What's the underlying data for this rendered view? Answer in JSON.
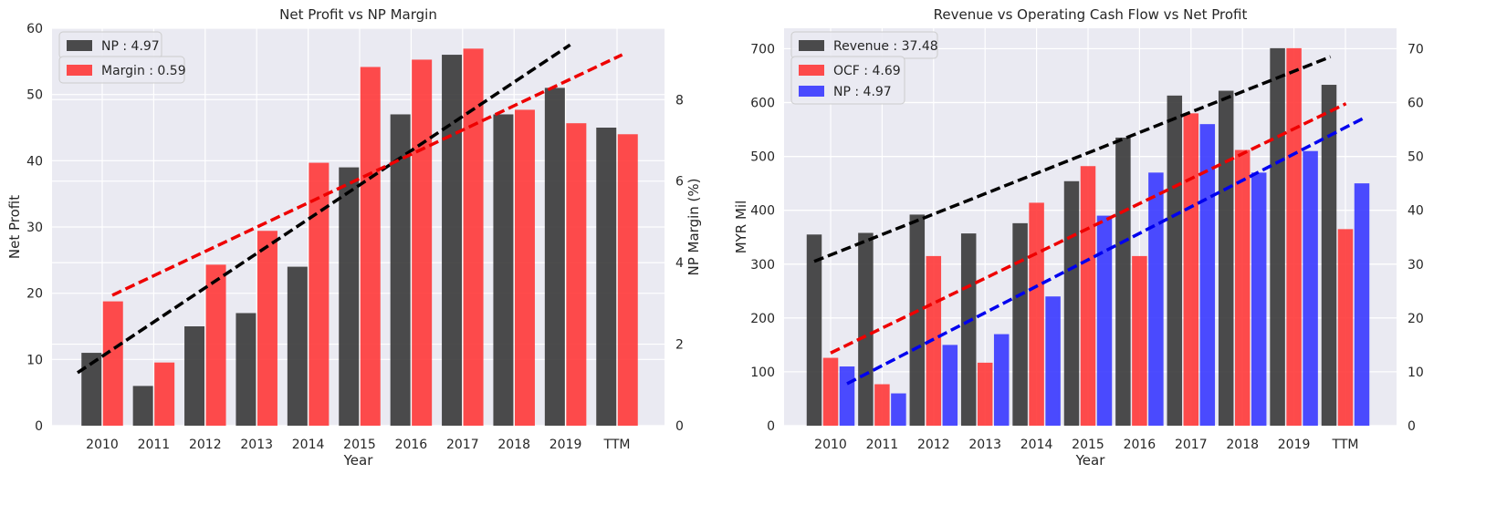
{
  "chart_data": [
    {
      "type": "bar",
      "title": "Net Profit vs NP Margin",
      "xlabel": "Year",
      "ylabel": "Net Profit",
      "y2label": "NP Margin (%)",
      "categories": [
        "2010",
        "2011",
        "2012",
        "2013",
        "2014",
        "2015",
        "2016",
        "2017",
        "2018",
        "2019",
        "TTM"
      ],
      "ylim": [
        0,
        60
      ],
      "yticks": [
        0,
        10,
        20,
        30,
        40,
        50,
        60
      ],
      "y2lim": [
        0,
        9.75
      ],
      "y2ticks": [
        0,
        2,
        4,
        6,
        8
      ],
      "grid": true,
      "legend_position": "top-left",
      "series": [
        {
          "name": "NP : 4.97",
          "axis": "left",
          "color": "#333333",
          "values": [
            11,
            6,
            15,
            17,
            24,
            39,
            47,
            56,
            47,
            51,
            45
          ],
          "trend": [
            8,
            57.5
          ]
        },
        {
          "name": "Margin : 0.59",
          "axis": "right",
          "color": "#ff3333",
          "values": [
            3.05,
            1.55,
            3.95,
            4.78,
            6.45,
            8.8,
            8.98,
            9.25,
            7.75,
            7.42,
            7.15
          ],
          "trend": [
            3.2,
            9.1
          ]
        }
      ]
    },
    {
      "type": "bar",
      "title": "Revenue vs Operating Cash Flow vs Net Profit",
      "xlabel": "Year",
      "ylabel": "MYR Mil",
      "y2label": "",
      "categories": [
        "2010",
        "2011",
        "2012",
        "2013",
        "2014",
        "2015",
        "2016",
        "2017",
        "2018",
        "2019",
        "TTM"
      ],
      "ylim": [
        0,
        738
      ],
      "yticks": [
        0,
        100,
        200,
        300,
        400,
        500,
        600,
        700
      ],
      "y2lim": [
        0,
        73.8
      ],
      "y2ticks": [
        0,
        10,
        20,
        30,
        40,
        50,
        60,
        70
      ],
      "grid": true,
      "legend_position": "top-left",
      "series": [
        {
          "name": "Revenue : 37.48",
          "axis": "left",
          "color": "#333333",
          "values": [
            355,
            358,
            392,
            357,
            376,
            454,
            535,
            613,
            622,
            701,
            633
          ],
          "trend": [
            305,
            685
          ]
        },
        {
          "name": "OCF : 4.69",
          "axis": "left",
          "color": "#ff3333",
          "values": [
            126,
            77,
            315,
            117,
            414,
            482,
            315,
            580,
            512,
            701,
            365
          ],
          "trend": [
            135,
            598
          ]
        },
        {
          "name": "NP : 4.97",
          "axis": "right",
          "color": "#3333ff",
          "values": [
            11,
            6,
            15,
            17,
            24,
            39,
            47,
            56,
            47,
            51,
            45
          ],
          "trend": [
            7.8,
            57
          ]
        }
      ]
    }
  ]
}
